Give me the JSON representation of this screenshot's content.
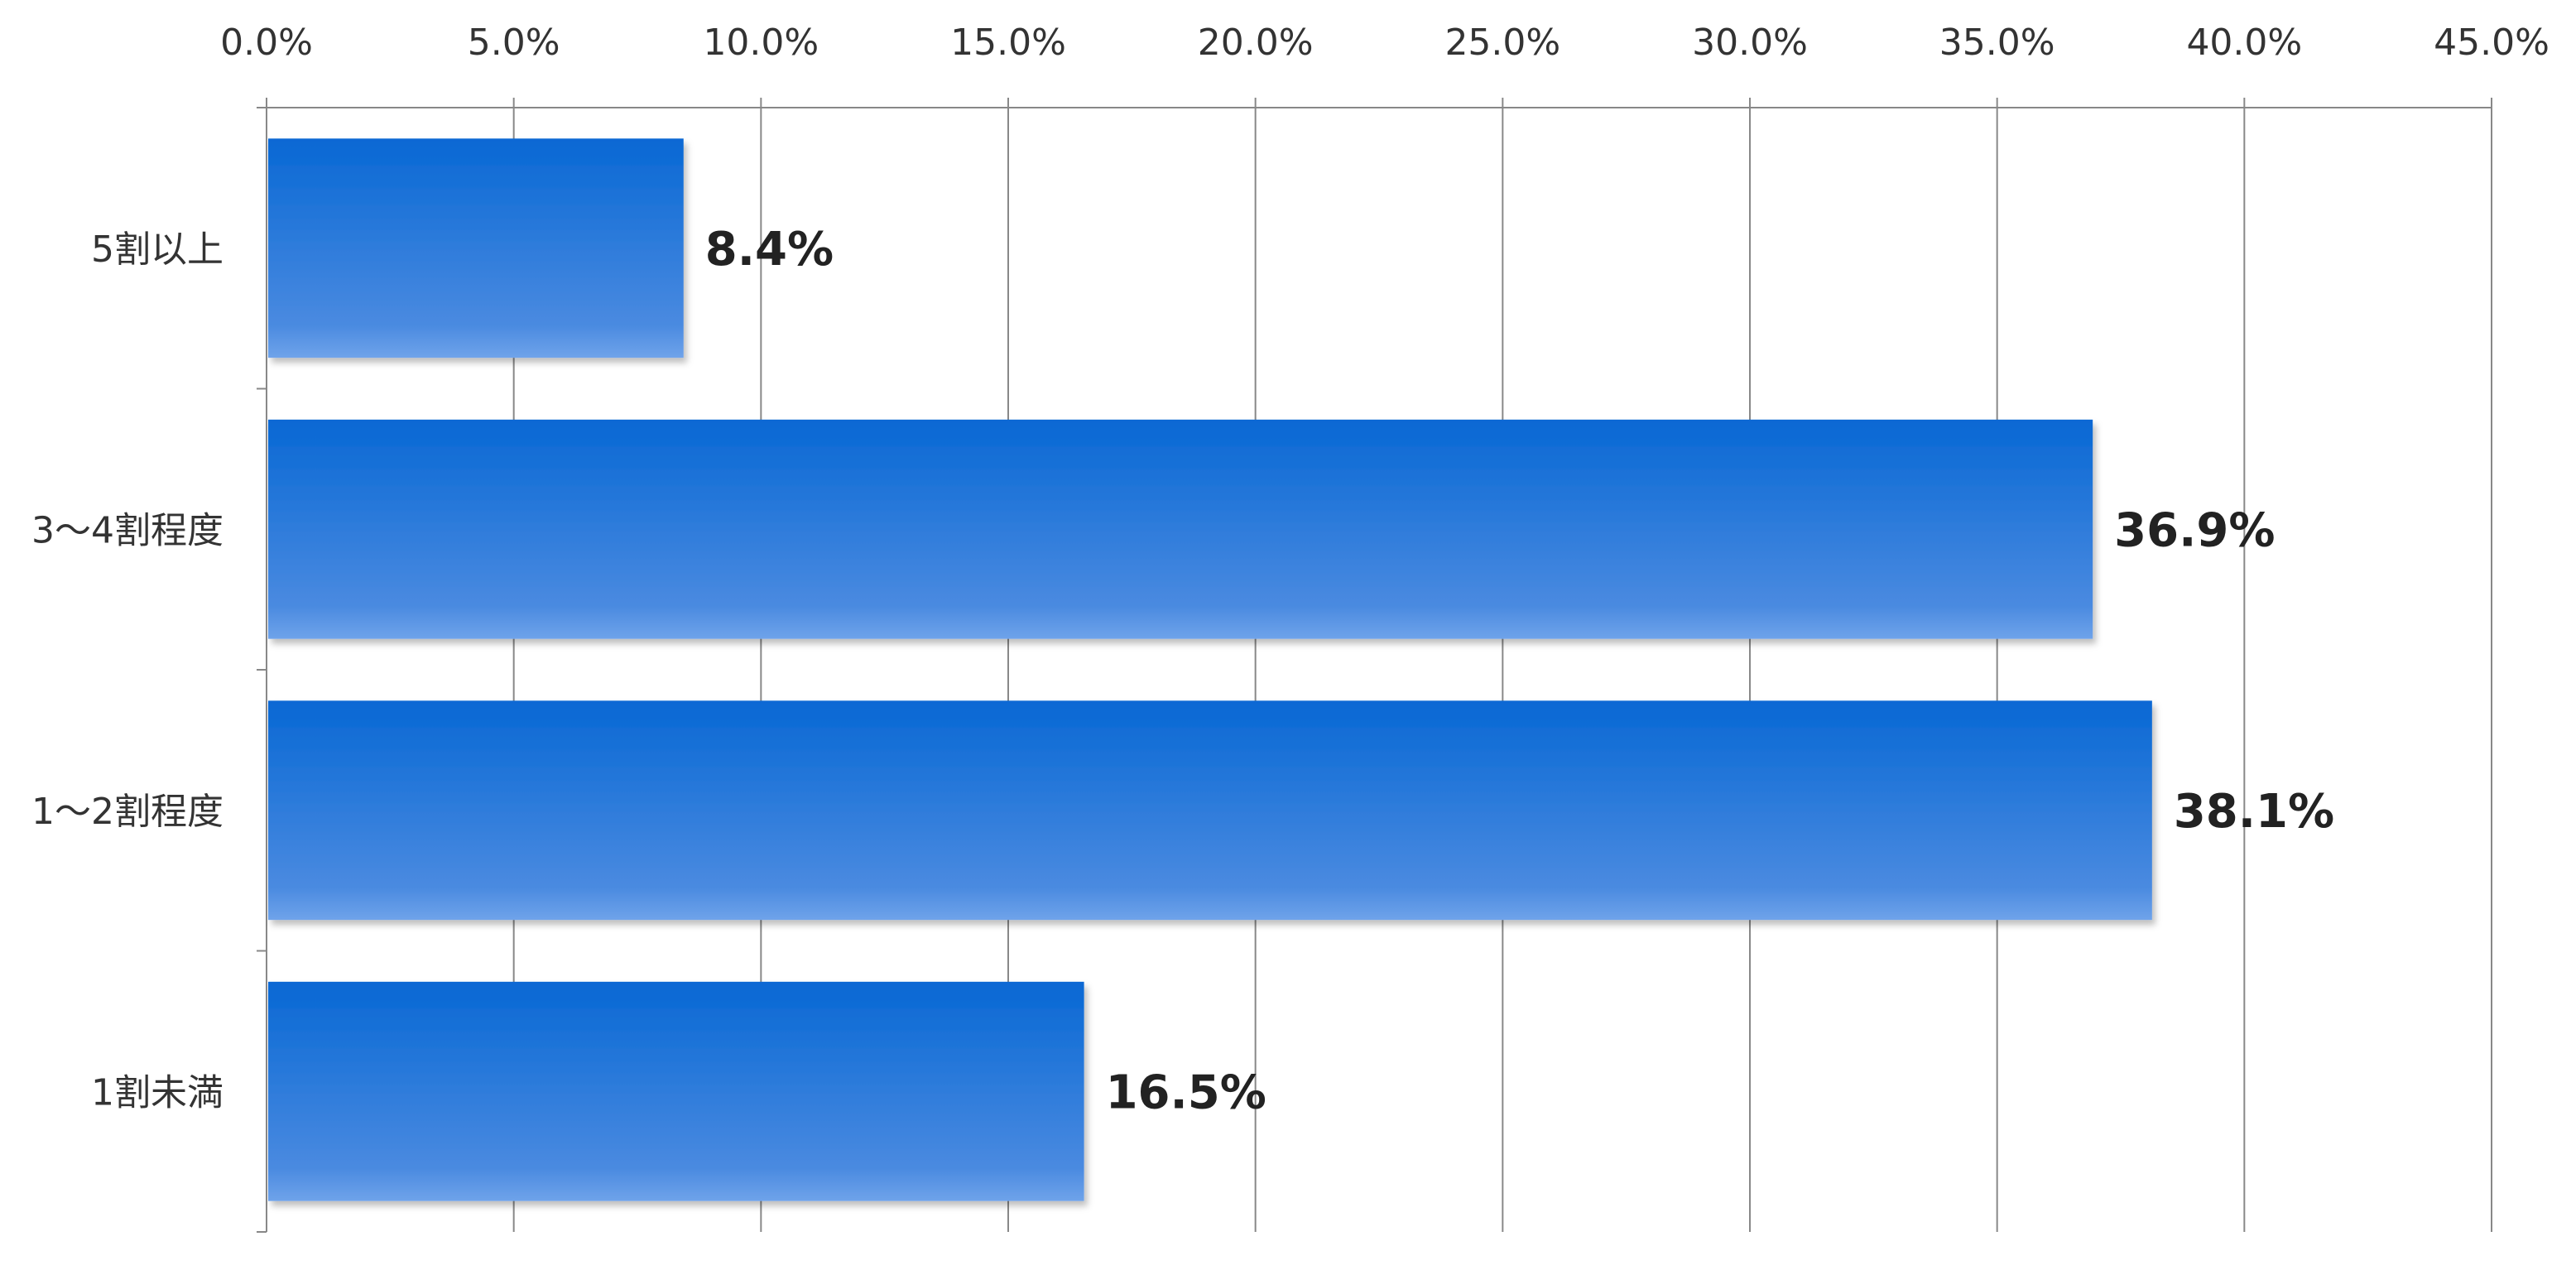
{
  "chart_data": {
    "type": "bar",
    "orientation": "horizontal",
    "categories": [
      "5割以上",
      "3～4割程度",
      "1～2割程度",
      "1割未満"
    ],
    "values": [
      8.4,
      36.9,
      38.1,
      16.5
    ],
    "value_labels": [
      "8.4%",
      "36.9%",
      "38.1%",
      "16.5%"
    ],
    "x_ticks": [
      "0.0%",
      "5.0%",
      "10.0%",
      "15.0%",
      "20.0%",
      "25.0%",
      "30.0%",
      "35.0%",
      "40.0%",
      "45.0%"
    ],
    "xlim": [
      0,
      45
    ],
    "x_axis_position": "top",
    "grid": true,
    "legend": "none",
    "colors": {
      "bar_top": "#0868d4",
      "bar_bottom": "#4a8ae0",
      "grid": "#888888",
      "axis": "#888888"
    }
  }
}
